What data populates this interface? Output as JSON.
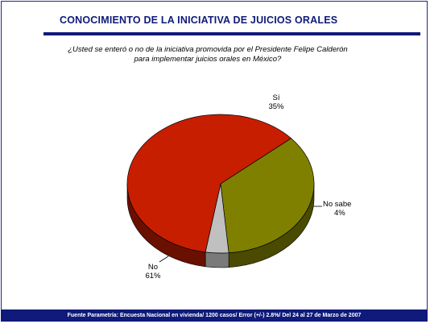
{
  "header": {
    "title": "CONOCIMIENTO DE LA INICIATIVA DE JUICIOS ORALES"
  },
  "question": {
    "line1": "¿Usted se enteró o no de la iniciativa promovida por el Presidente Felipe Calderón",
    "line2": "para implementar juicios orales en México?"
  },
  "footer": {
    "source": "Fuente Parametría: Encuesta Nacional en vivienda/ 1200 casos/ Error (+/-) 2.8%/ Del 24 al 27 de Marzo de 2007"
  },
  "colors": {
    "frame": "#1f2a7a",
    "title": "#0f1a7a"
  },
  "chart_data": {
    "type": "pie",
    "labels": [
      "Sí",
      "No sabe",
      "No"
    ],
    "values": [
      35,
      4,
      61
    ],
    "value_labels": [
      "35%",
      "4%",
      "61%"
    ],
    "colors": [
      "#808000",
      "#c0c0c0",
      "#c81e00"
    ],
    "side_colors": [
      "#4a4a00",
      "#7a7a7a",
      "#6a1000"
    ],
    "style": "3d",
    "start_angle_deg": -41
  }
}
